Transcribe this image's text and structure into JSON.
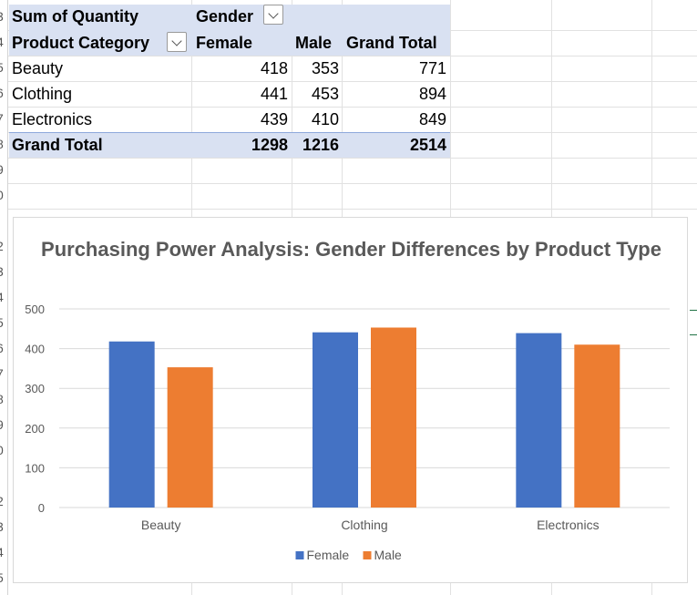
{
  "row_headers": [
    "3",
    "4",
    "5",
    "6",
    "7",
    "8",
    "9",
    "0",
    "",
    "2",
    "3",
    "4",
    "5",
    "6",
    "7",
    "8",
    "9",
    "0",
    "2",
    "3",
    "4",
    "5"
  ],
  "pivot": {
    "title": "Sum of Quantity",
    "column_field": "Gender",
    "row_field": "Product Category",
    "col_headers": [
      "Female",
      "Male",
      "Grand Total"
    ],
    "rows": [
      {
        "label": "Beauty",
        "female": "418",
        "male": "353",
        "total": "771"
      },
      {
        "label": "Clothing",
        "female": "441",
        "male": "453",
        "total": "894"
      },
      {
        "label": "Electronics",
        "female": "439",
        "male": "410",
        "total": "849"
      }
    ],
    "grand_total": {
      "label": "Grand Total",
      "female": "1298",
      "male": "1216",
      "total": "2514"
    }
  },
  "chart_data": {
    "type": "bar",
    "title": "Purchasing Power Analysis: Gender Differences by Product Type",
    "categories": [
      "Beauty",
      "Clothing",
      "Electronics"
    ],
    "series": [
      {
        "name": "Female",
        "values": [
          418,
          441,
          439
        ],
        "color": "#4472c4"
      },
      {
        "name": "Male",
        "values": [
          353,
          453,
          410
        ],
        "color": "#ed7d31"
      }
    ],
    "ylim": [
      0,
      500
    ],
    "yticks": [
      0,
      100,
      200,
      300,
      400,
      500
    ],
    "grid": true,
    "legend": "bottom"
  }
}
